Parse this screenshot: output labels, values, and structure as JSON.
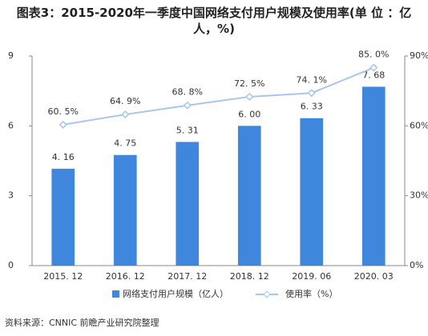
{
  "chart_data": {
    "type": "bar-line",
    "title": "图表3：2015-2020年一季度中国网络支付用户规模及使用率(单 位 ：亿人，%)",
    "categories": [
      "2015. 12",
      "2016. 12",
      "2017. 12",
      "2018. 12",
      "2019. 06",
      "2020. 03"
    ],
    "series": [
      {
        "name": "网络支付用户规模（亿人）",
        "type": "bar",
        "color": "#3f87dc",
        "values": [
          4.16,
          4.75,
          5.31,
          6.0,
          6.33,
          7.68
        ],
        "value_labels": [
          "4. 16",
          "4. 75",
          "5. 31",
          "6. 00",
          "6. 33",
          "7. 68"
        ]
      },
      {
        "name": "使用率（%）",
        "type": "line",
        "axis": "y2",
        "color": "#a8c6ec",
        "values": [
          60.5,
          64.9,
          68.8,
          72.5,
          74.1,
          85.0
        ],
        "value_labels": [
          "60. 5%",
          "64. 9%",
          "68. 8%",
          "72. 5%",
          "74. 1%",
          "85. 0%"
        ]
      }
    ],
    "ylim": [
      0,
      9
    ],
    "yticks": [
      0,
      3,
      6,
      9
    ],
    "y2lim": [
      0,
      90
    ],
    "y2ticks": [
      {
        "value": 0,
        "label": "0%"
      },
      {
        "value": 30,
        "label": "30%"
      },
      {
        "value": 60,
        "label": "60%"
      },
      {
        "value": 90,
        "label": "90%"
      }
    ],
    "source": "资料来源：CNNIC 前瞻产业研究院整理"
  }
}
